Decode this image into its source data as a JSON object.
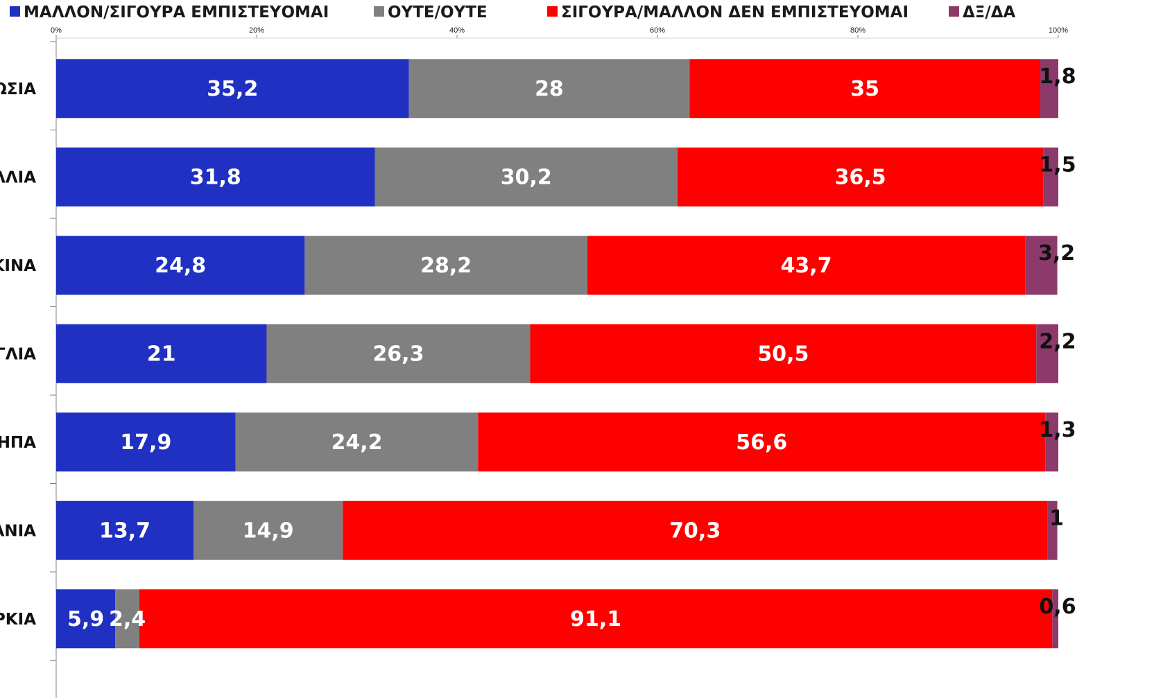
{
  "chart_data": {
    "type": "bar",
    "orientation": "horizontal",
    "stacked": true,
    "percent_stacked": true,
    "title": "",
    "xlabel": "",
    "ylabel": "",
    "xlim": [
      0,
      100
    ],
    "x_ticks": [
      "0%",
      "20%",
      "40%",
      "60%",
      "80%",
      "100%"
    ],
    "x_tick_values": [
      0,
      20,
      40,
      60,
      80,
      100
    ],
    "legend_position": "top",
    "grid": false,
    "categories": [
      "ΩΣΙΑ",
      "ΛΛΙΑ",
      "ΚΙΝΑ",
      "ΓΛΙΑ",
      "ΗΠΑ",
      "ΑΝΙΑ",
      "ΡΚΙΑ"
    ],
    "series": [
      {
        "name": "ΜΑΛΛΟΝ/ΣΙΓΟΥΡΑ ΕΜΠΙΣΤΕΥΟΜΑΙ",
        "color": "#1f30c2",
        "values": [
          35.2,
          31.8,
          24.8,
          21,
          17.9,
          13.7,
          5.9
        ],
        "labels": [
          "35,2",
          "31,8",
          "24,8",
          "21",
          "17,9",
          "13,7",
          "5,9"
        ]
      },
      {
        "name": "ΟΥΤΕ/ΟΥΤΕ",
        "color": "#808080",
        "values": [
          28,
          30.2,
          28.2,
          26.3,
          24.2,
          14.9,
          2.4
        ],
        "labels": [
          "28",
          "30,2",
          "28,2",
          "26,3",
          "24,2",
          "14,9",
          "2,4"
        ]
      },
      {
        "name": "ΣΙΓΟΥΡΑ/ΜΑΛΛΟΝ ΔΕΝ ΕΜΠΙΣΤΕΥΟΜΑΙ",
        "color": "#ff0000",
        "values": [
          35,
          36.5,
          43.7,
          50.5,
          56.6,
          70.3,
          91.1
        ],
        "labels": [
          "35",
          "36,5",
          "43,7",
          "50,5",
          "56,6",
          "70,3",
          "91,1"
        ]
      },
      {
        "name": "ΔΞ/ΔΑ",
        "color": "#8b3a6b",
        "values": [
          1.8,
          1.5,
          3.2,
          2.2,
          1.3,
          1,
          0.6
        ],
        "labels": [
          "1,8",
          "1,5",
          "3,2",
          "2,2",
          "1,3",
          "1",
          "0,6"
        ]
      }
    ]
  }
}
